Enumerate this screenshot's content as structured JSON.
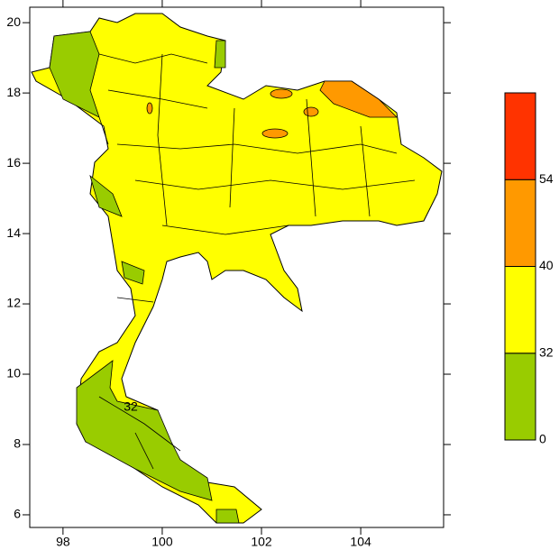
{
  "chart_data": {
    "type": "map",
    "xlim": [
      97.33,
      105.67
    ],
    "ylim": [
      5.64,
      20.44
    ],
    "xticks": [
      98,
      100,
      102,
      104
    ],
    "yticks": [
      6,
      8,
      10,
      12,
      14,
      16,
      18,
      20
    ],
    "contour_label": 32,
    "colorbar": {
      "levels": [
        {
          "value": 0,
          "color": "#99cc00"
        },
        {
          "value": 32,
          "color": "#ffff00"
        },
        {
          "value": 40,
          "color": "#ff9900"
        },
        {
          "value": 54,
          "color": "#ff3300"
        }
      ]
    }
  }
}
